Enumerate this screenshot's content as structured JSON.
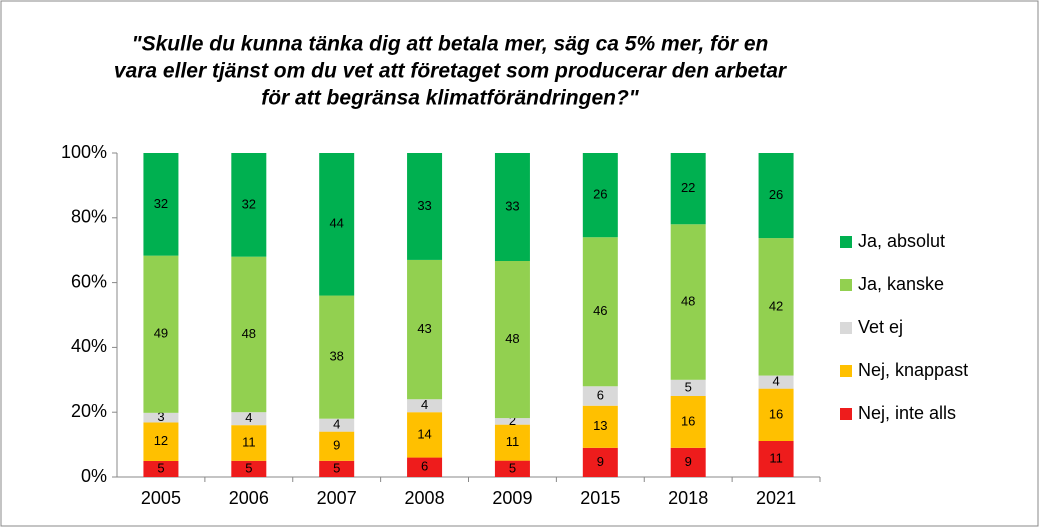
{
  "chart_data": {
    "type": "bar",
    "stacking": "percent",
    "title": [
      "\"Skulle du kunna tänka dig att betala mer, säg ca 5% mer, för en",
      "vara eller tjänst om du vet att företaget som producerar den arbetar",
      "för att begränsa klimatförändringen?\""
    ],
    "categories": [
      "2005",
      "2006",
      "2007",
      "2008",
      "2009",
      "2015",
      "2018",
      "2021"
    ],
    "series": [
      {
        "name": "Nej, inte alls",
        "color": "#ee1c1c",
        "values": [
          5,
          5,
          5,
          6,
          5,
          9,
          9,
          11
        ]
      },
      {
        "name": "Nej, knappast",
        "color": "#ffc000",
        "values": [
          12,
          11,
          9,
          14,
          11,
          13,
          16,
          16
        ]
      },
      {
        "name": "Vet ej",
        "color": "#d9d9d9",
        "values": [
          3,
          4,
          4,
          4,
          2,
          6,
          5,
          4
        ]
      },
      {
        "name": "Ja, kanske",
        "color": "#92d050",
        "values": [
          49,
          48,
          38,
          43,
          48,
          46,
          48,
          42
        ]
      },
      {
        "name": "Ja, absolut",
        "color": "#00b050",
        "values": [
          32,
          32,
          44,
          33,
          33,
          26,
          22,
          26
        ]
      }
    ],
    "ylim": [
      0,
      100
    ],
    "yticks": [
      {
        "value": 0,
        "label": "0%"
      },
      {
        "value": 20,
        "label": "20%"
      },
      {
        "value": 40,
        "label": "40%"
      },
      {
        "value": 60,
        "label": "60%"
      },
      {
        "value": 80,
        "label": "80%"
      },
      {
        "value": 100,
        "label": "100%"
      }
    ],
    "legend": "right"
  }
}
